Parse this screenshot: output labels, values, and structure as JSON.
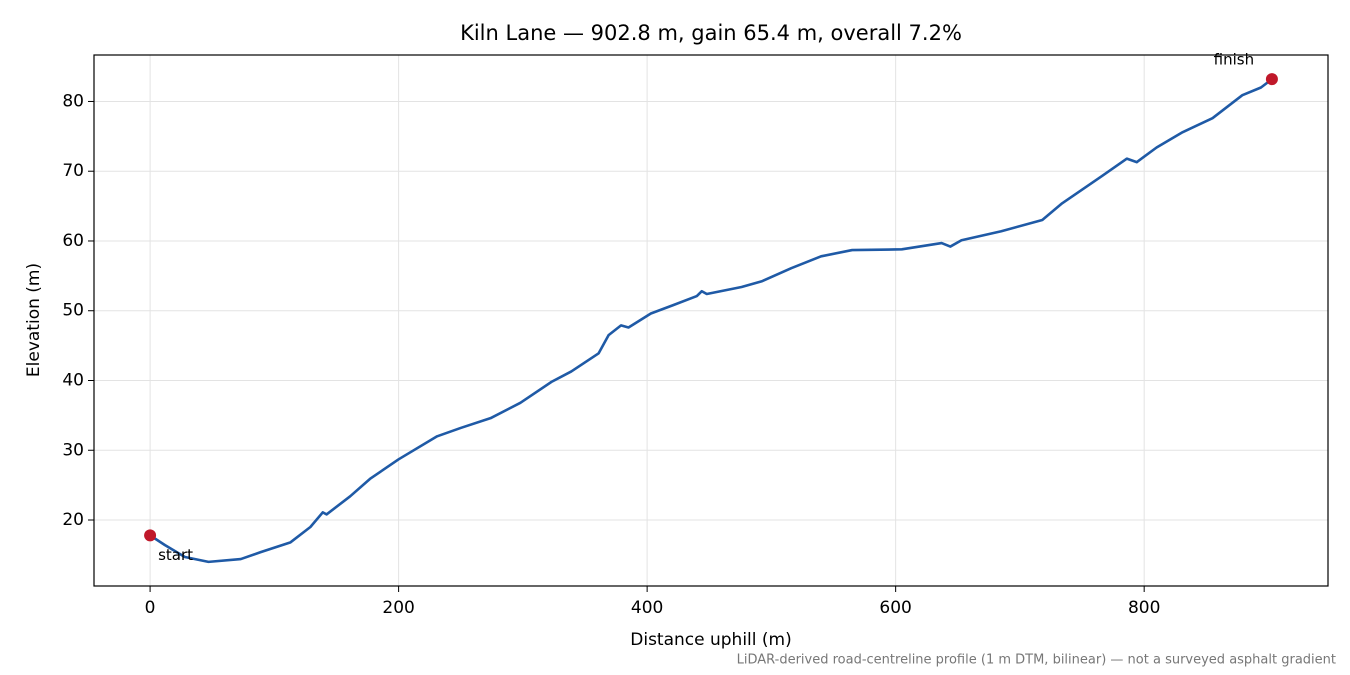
{
  "chart_data": {
    "type": "line",
    "title": "Kiln Lane — 902.8 m, gain 65.4 m, overall 7.2%",
    "xlabel": "Distance uphill (m)",
    "ylabel": "Elevation (m)",
    "footnote": "LiDAR-derived road-centreline profile (1 m DTM, bilinear) — not a surveyed asphalt gradient",
    "xlim": [
      -45.14,
      947.94
    ],
    "ylim": [
      10.54,
      86.66
    ],
    "xticks": [
      0,
      200,
      400,
      600,
      800
    ],
    "yticks": [
      20,
      30,
      40,
      50,
      60,
      70,
      80
    ],
    "grid": true,
    "series": [
      {
        "name": "Elevation",
        "color": "#1f5aa6",
        "x": [
          0,
          12,
          28,
          47,
          73,
          89,
          113,
          129,
          139,
          142,
          161,
          177,
          200,
          231,
          250,
          274,
          298,
          323,
          339,
          361,
          369,
          379,
          385,
          403,
          421,
          440,
          444,
          448,
          476,
          492,
          516,
          540,
          565,
          605,
          637,
          644,
          653,
          685,
          718,
          734,
          766,
          786,
          794,
          810,
          831,
          855,
          879,
          894,
          902.8
        ],
        "values": [
          17.8,
          16.4,
          14.7,
          14.0,
          14.4,
          15.4,
          16.8,
          19.0,
          21.1,
          20.8,
          23.4,
          25.9,
          28.7,
          32.0,
          33.2,
          34.6,
          36.8,
          39.8,
          41.3,
          43.9,
          46.5,
          47.9,
          47.6,
          49.6,
          50.8,
          52.1,
          52.8,
          52.4,
          53.4,
          54.2,
          56.1,
          57.8,
          58.7,
          58.8,
          59.7,
          59.2,
          60.1,
          61.4,
          63.0,
          65.4,
          69.3,
          71.8,
          71.3,
          73.4,
          75.6,
          77.6,
          80.9,
          82.0,
          83.2
        ]
      }
    ],
    "markers": [
      {
        "label": "start",
        "x": 0,
        "y": 17.8,
        "color": "#c0182a"
      },
      {
        "label": "finish",
        "x": 902.8,
        "y": 83.2,
        "color": "#c0182a"
      }
    ]
  }
}
